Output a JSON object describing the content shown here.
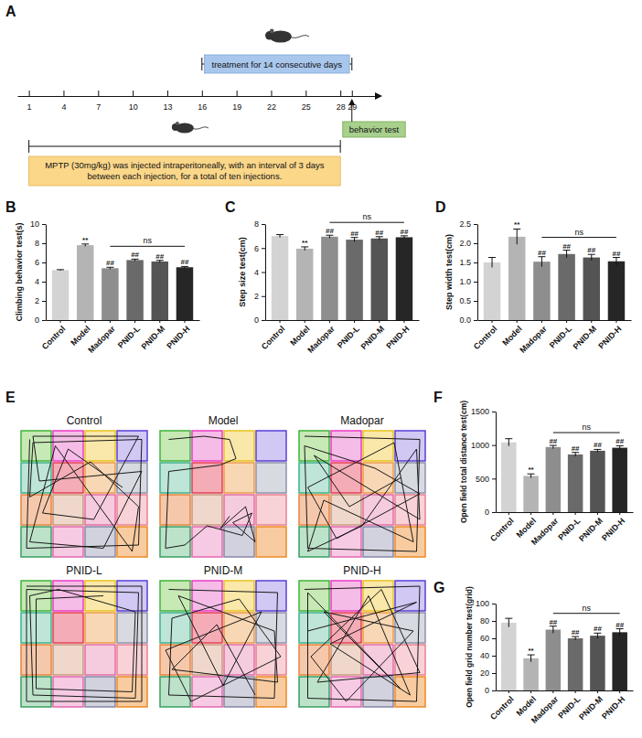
{
  "timeline": {
    "panel": "A",
    "xlim": [
      0,
      31
    ],
    "ticks": [
      1,
      4,
      7,
      10,
      13,
      16,
      19,
      22,
      25,
      28,
      29
    ],
    "treatment": {
      "text": "treatment for 14 consecutive days",
      "from": 16,
      "to": 29
    },
    "injection": {
      "text": "MPTP (30mg/kg) was injected intraperitoneally, with an interval of 3 days between each injection, for a total of ten injections.",
      "from": 1,
      "to": 28
    },
    "behavior": {
      "text": "behavior test",
      "day": 29
    }
  },
  "chart_data": [
    {
      "type": "bar",
      "panel": "B",
      "ylabel": "Climbing behavior test(s)",
      "categories": [
        "Control",
        "Model",
        "Madopar",
        "PNID-L",
        "PNID-M",
        "PNID-H"
      ],
      "values": [
        5.2,
        7.8,
        5.4,
        6.25,
        6.1,
        5.5
      ],
      "errors": [
        0.05,
        0.12,
        0.1,
        0.1,
        0.12,
        0.08
      ],
      "colors": [
        "#d3d3d3",
        "#b4b4b4",
        "#8e8e8e",
        "#6a6a6a",
        "#545454",
        "#262626"
      ],
      "ylim": [
        0,
        10
      ],
      "yticks": [
        0,
        2,
        4,
        6,
        8,
        10
      ],
      "annotations": [
        {
          "index": 1,
          "text": "**"
        },
        {
          "index": 2,
          "text": "##"
        },
        {
          "index": 3,
          "text": "##"
        },
        {
          "index": 4,
          "text": "##"
        },
        {
          "index": 5,
          "text": "##"
        }
      ],
      "ns": {
        "from": 2,
        "to": 5,
        "text": "ns"
      }
    },
    {
      "type": "bar",
      "panel": "C",
      "ylabel": "Step size test(cm)",
      "categories": [
        "Control",
        "Model",
        "Madopar",
        "PNID-L",
        "PNID-M",
        "PNID-H"
      ],
      "values": [
        7.0,
        5.95,
        6.95,
        6.7,
        6.8,
        6.9
      ],
      "errors": [
        0.12,
        0.15,
        0.12,
        0.18,
        0.15,
        0.12
      ],
      "colors": [
        "#d3d3d3",
        "#b4b4b4",
        "#8e8e8e",
        "#6a6a6a",
        "#545454",
        "#262626"
      ],
      "ylim": [
        0,
        8
      ],
      "yticks": [
        0,
        2,
        4,
        6,
        8
      ],
      "annotations": [
        {
          "index": 1,
          "text": "**"
        },
        {
          "index": 2,
          "text": "##"
        },
        {
          "index": 3,
          "text": "##"
        },
        {
          "index": 4,
          "text": "##"
        },
        {
          "index": 5,
          "text": "##"
        }
      ],
      "ns": {
        "from": 2,
        "to": 5,
        "text": "ns"
      }
    },
    {
      "type": "bar",
      "panel": "D",
      "ylabel": "Step width test(cm)",
      "categories": [
        "Control",
        "Model",
        "Madopar",
        "PNID-L",
        "PNID-M",
        "PNID-H"
      ],
      "values": [
        1.5,
        2.17,
        1.52,
        1.72,
        1.63,
        1.53
      ],
      "errors": [
        0.13,
        0.2,
        0.13,
        0.1,
        0.08,
        0.1
      ],
      "colors": [
        "#d3d3d3",
        "#b4b4b4",
        "#8e8e8e",
        "#6a6a6a",
        "#545454",
        "#262626"
      ],
      "ylim": [
        0,
        2.5
      ],
      "yticks": [
        {
          "value": 0,
          "label": "0.0"
        },
        0.5,
        {
          "value": 1,
          "label": "1.0"
        },
        1.5,
        {
          "value": 2,
          "label": "2.0"
        },
        2.5
      ],
      "annotations": [
        {
          "index": 1,
          "text": "**"
        },
        {
          "index": 2,
          "text": "##"
        },
        {
          "index": 3,
          "text": "##"
        },
        {
          "index": 4,
          "text": "##"
        },
        {
          "index": 5,
          "text": "##"
        }
      ],
      "ns": {
        "from": 2,
        "to": 5,
        "text": "ns"
      }
    },
    {
      "type": "bar",
      "panel": "F",
      "ylabel": "Open field total distance test(cm)",
      "categories": [
        "Control",
        "Model",
        "Madopar",
        "PNID-L",
        "PNID-M",
        "PNID-H"
      ],
      "values": [
        1040,
        540,
        970,
        860,
        915,
        960
      ],
      "errors": [
        55,
        30,
        25,
        30,
        20,
        30
      ],
      "colors": [
        "#d3d3d3",
        "#b4b4b4",
        "#8e8e8e",
        "#6a6a6a",
        "#545454",
        "#262626"
      ],
      "ylim": [
        0,
        1500
      ],
      "yticks": [
        0,
        500,
        1000,
        1500
      ],
      "annotations": [
        {
          "index": 1,
          "text": "**"
        },
        {
          "index": 2,
          "text": "##"
        },
        {
          "index": 3,
          "text": "##"
        },
        {
          "index": 4,
          "text": "##"
        },
        {
          "index": 5,
          "text": "##"
        }
      ],
      "ns": {
        "from": 2,
        "to": 5,
        "text": "ns"
      }
    },
    {
      "type": "bar",
      "panel": "G",
      "ylabel": "Open field grid number test(grid)",
      "categories": [
        "Control",
        "Model",
        "Madopar",
        "PNID-L",
        "PNID-M",
        "PNID-H"
      ],
      "values": [
        78,
        37,
        70,
        60,
        63,
        67
      ],
      "errors": [
        5,
        4,
        4,
        2,
        3,
        4
      ],
      "colors": [
        "#d3d3d3",
        "#b4b4b4",
        "#8e8e8e",
        "#6a6a6a",
        "#545454",
        "#262626"
      ],
      "ylim": [
        0,
        100
      ],
      "yticks": [
        0,
        20,
        40,
        60,
        80,
        100
      ],
      "annotations": [
        {
          "index": 1,
          "text": "**"
        },
        {
          "index": 2,
          "text": "##"
        },
        {
          "index": 3,
          "text": "##"
        },
        {
          "index": 4,
          "text": "##"
        },
        {
          "index": 5,
          "text": "##"
        }
      ],
      "ns": {
        "from": 2,
        "to": 5,
        "text": "ns"
      }
    }
  ],
  "open_field": {
    "panel": "E",
    "xlim": [
      0,
      4
    ],
    "ylim": [
      0,
      4
    ],
    "trajectories": [
      {
        "name": "Control",
        "x": [
          0.3,
          0.2,
          3.7,
          3.8,
          0.4,
          0.3,
          2.2,
          3.7,
          3.5,
          1.1,
          0.3,
          2.6,
          3.8,
          0.6,
          0.4,
          3.7,
          2.3,
          0.7,
          1.5,
          3.2
        ],
        "y": [
          0.3,
          3.7,
          3.6,
          0.3,
          0.4,
          2.1,
          1.0,
          2.4,
          3.8,
          0.5,
          3.5,
          3.7,
          1.3,
          1.6,
          0.2,
          0.2,
          2.8,
          2.6,
          0.6,
          1.8
        ]
      },
      {
        "name": "Model",
        "x": [
          0.3,
          1.4,
          2.2,
          2.4,
          1.9,
          0.3,
          0.2,
          0.8,
          1.5,
          2.6,
          2.9,
          2.3,
          3.0,
          2.7,
          1.9,
          2.2
        ],
        "y": [
          0.3,
          0.2,
          0.3,
          0.9,
          1.1,
          1.3,
          3.7,
          3.6,
          3.0,
          3.3,
          2.6,
          2.9,
          3.5,
          2.4,
          3.1,
          2.7
        ]
      },
      {
        "name": "Madopar",
        "x": [
          0.2,
          3.8,
          3.7,
          0.3,
          0.2,
          2.4,
          3.8,
          1.2,
          0.3,
          3.0,
          3.6,
          0.8,
          0.3,
          2.0,
          3.7,
          3.8,
          0.5,
          1.6,
          3.2
        ],
        "y": [
          0.2,
          0.3,
          3.8,
          3.7,
          0.5,
          1.2,
          2.0,
          3.4,
          1.8,
          0.4,
          3.5,
          2.2,
          3.8,
          3.0,
          0.6,
          2.8,
          0.8,
          2.4,
          1.5
        ]
      },
      {
        "name": "PNID-L",
        "x": [
          0.2,
          3.8,
          3.8,
          0.2,
          0.2,
          3.7,
          3.6,
          0.4,
          0.3,
          1.2,
          3.6,
          3.5,
          0.5,
          0.5,
          2.6
        ],
        "y": [
          0.2,
          0.2,
          3.8,
          3.8,
          0.3,
          0.4,
          3.7,
          3.6,
          0.5,
          0.3,
          1.0,
          3.5,
          3.4,
          0.6,
          0.5
        ]
      },
      {
        "name": "PNID-M",
        "x": [
          0.3,
          3.7,
          3.6,
          0.3,
          0.4,
          2.5,
          3.8,
          1.0,
          0.2,
          3.2,
          2.0,
          0.6,
          3.6,
          3.7,
          0.4,
          1.8,
          3.0
        ],
        "y": [
          0.3,
          0.4,
          3.7,
          3.6,
          1.2,
          0.6,
          2.4,
          3.8,
          2.2,
          1.0,
          3.3,
          0.5,
          1.6,
          3.2,
          2.8,
          1.4,
          3.6
        ]
      },
      {
        "name": "PNID-H",
        "x": [
          0.2,
          3.8,
          3.7,
          0.3,
          0.3,
          3.2,
          0.8,
          3.6,
          1.5,
          0.4,
          2.6,
          3.8,
          0.6,
          2.2,
          3.5,
          1.0,
          3.7,
          0.3
        ],
        "y": [
          0.3,
          0.2,
          3.8,
          3.7,
          0.4,
          3.4,
          1.0,
          1.6,
          3.8,
          2.4,
          0.3,
          2.9,
          3.2,
          0.5,
          3.6,
          2.0,
          0.7,
          1.6
        ]
      }
    ]
  }
}
